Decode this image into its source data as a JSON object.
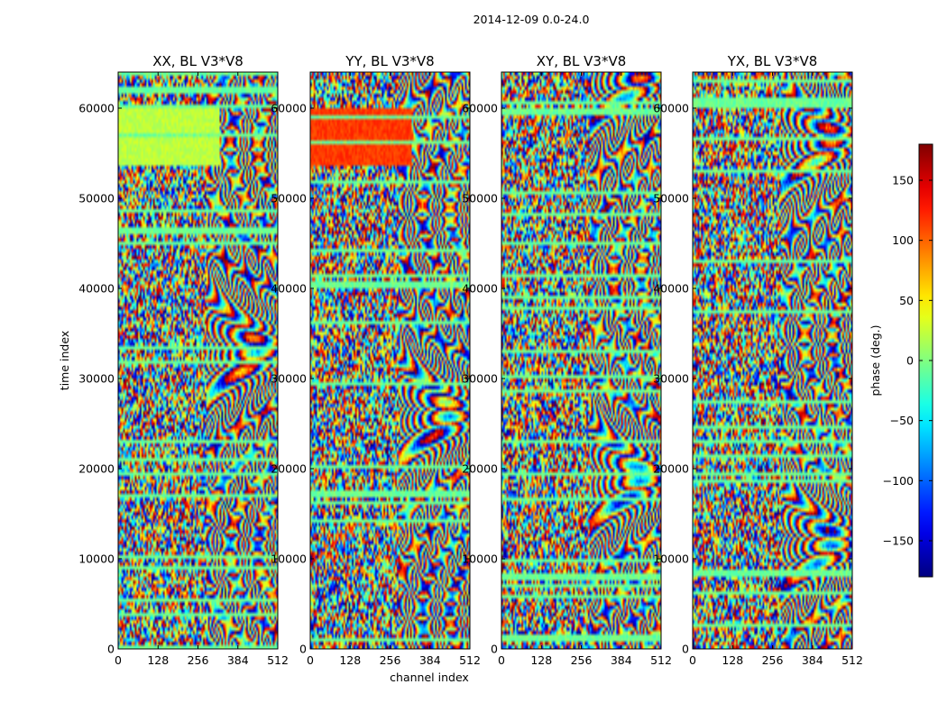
{
  "chart_data": {
    "type": "heatmap",
    "title": "2014-12-09 0.0-24.0",
    "xlabel": "channel index",
    "ylabel": "time index",
    "xlim": [
      0,
      512
    ],
    "ylim": [
      0,
      64000
    ],
    "x_ticks": [
      "0",
      "128",
      "256",
      "384",
      "512"
    ],
    "y_ticks": [
      "0",
      "10000",
      "20000",
      "30000",
      "40000",
      "50000",
      "60000"
    ],
    "panels": [
      {
        "title": "XX, BL V3*V8"
      },
      {
        "title": "YY, BL V3*V8"
      },
      {
        "title": "XY, BL V3*V8"
      },
      {
        "title": "YX, BL V3*V8"
      }
    ],
    "colorbar": {
      "label": "phase (deg.)",
      "colormap": "jet",
      "range": [
        -180,
        180
      ],
      "ticks": [
        "−150",
        "−100",
        "−50",
        "0",
        "50",
        "100",
        "150"
      ]
    }
  }
}
